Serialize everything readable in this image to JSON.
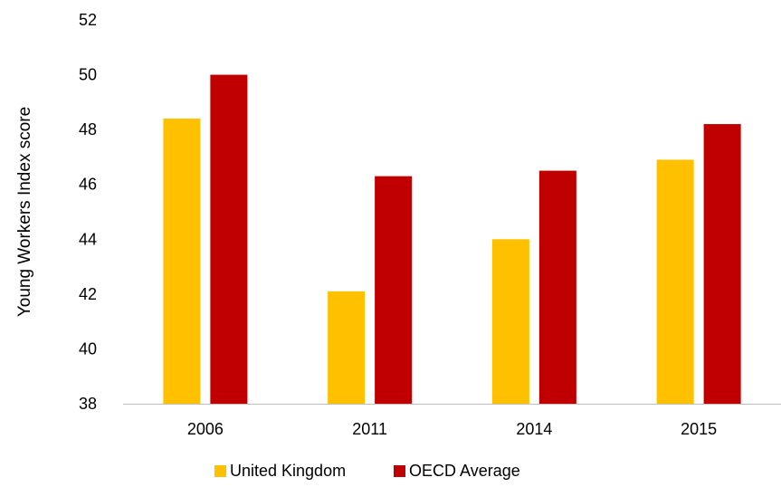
{
  "chart_data": {
    "type": "bar",
    "title": "",
    "xlabel": "",
    "ylabel": "Young Workers Index score",
    "categories": [
      "2006",
      "2011",
      "2014",
      "2015"
    ],
    "ylim": [
      38,
      52
    ],
    "yticks": [
      38,
      40,
      42,
      44,
      46,
      48,
      50,
      52
    ],
    "grid": false,
    "legend_position": "bottom",
    "series": [
      {
        "name": "United Kingdom",
        "color": "#FFC000",
        "values": [
          48.4,
          42.1,
          44.0,
          46.9
        ]
      },
      {
        "name": "OECD Average",
        "color": "#C00000",
        "values": [
          50.0,
          46.3,
          46.5,
          48.2
        ]
      }
    ]
  }
}
